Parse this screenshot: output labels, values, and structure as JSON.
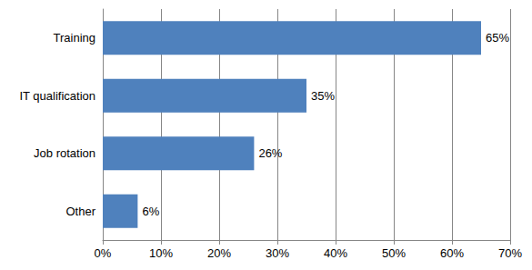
{
  "chart_data": {
    "type": "bar",
    "orientation": "horizontal",
    "categories": [
      "Training",
      "IT qualification",
      "Job rotation",
      "Other"
    ],
    "values": [
      65,
      35,
      26,
      6
    ],
    "value_labels": [
      "65%",
      "35%",
      "26%",
      "6%"
    ],
    "color": "#4f81bd",
    "xlim": [
      0,
      70
    ],
    "xticks": [
      {
        "value": 0,
        "label": "0%"
      },
      {
        "value": 10,
        "label": "10%"
      },
      {
        "value": 20,
        "label": "20%"
      },
      {
        "value": 30,
        "label": "30%"
      },
      {
        "value": 40,
        "label": "40%"
      },
      {
        "value": 50,
        "label": "50%"
      },
      {
        "value": 60,
        "label": "60%"
      },
      {
        "value": 70,
        "label": "70%"
      }
    ],
    "grid": true,
    "data_labels": true
  }
}
